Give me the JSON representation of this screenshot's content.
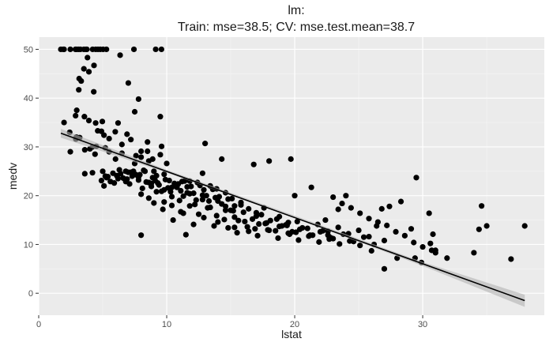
{
  "chart_data": {
    "type": "scatter",
    "title_line1": "lm:",
    "title_line2": "Train: mse=38.5; CV: mse.test.mean=38.7",
    "xlabel": "lstat",
    "ylabel": "medv",
    "xlim": [
      0,
      39.5
    ],
    "ylim": [
      -4.5,
      52.5
    ],
    "x_ticks": [
      0,
      10,
      20,
      30
    ],
    "y_ticks": [
      0,
      10,
      20,
      30,
      40,
      50
    ],
    "x_tick_labels": [
      "0",
      "10",
      "20",
      "30"
    ],
    "y_tick_labels": [
      "0",
      "10",
      "20",
      "30",
      "40",
      "50"
    ],
    "grid": true,
    "colors": {
      "panel": "#ebebeb",
      "grid_major": "#ffffff",
      "grid_minor": "#f5f5f5",
      "points": "#000000",
      "fit_line": "#000000",
      "confidence_band": "#b3b3b3"
    },
    "fit_line": {
      "x": [
        1.73,
        37.97
      ],
      "y": [
        32.8,
        -1.5
      ]
    },
    "confidence_band": {
      "x": [
        1.73,
        10,
        20,
        30,
        37.97
      ],
      "lower": [
        31.9,
        24.7,
        15.4,
        5.6,
        -2.8
      ],
      "upper": [
        33.7,
        25.3,
        15.9,
        6.4,
        -0.3
      ]
    },
    "series": [
      {
        "x": [
          1.73,
          1.92,
          1.98,
          2.47,
          2.87,
          2.96,
          3.11,
          3.26,
          3.53,
          3.7,
          3.76,
          4.21,
          4.45,
          4.63,
          4.81,
          5.03,
          5.29,
          6.36,
          7.44,
          9.14,
          9.59,
          1.98,
          2.88,
          3.13,
          3.16,
          3.32,
          3.53,
          3.81,
          2.42,
          4.3,
          4.32,
          3.92,
          2.97,
          2.94,
          3.92,
          4.45,
          2.47,
          3.57,
          4.61,
          4.97,
          5.1,
          5.2,
          5.98,
          6.5,
          7.2,
          7.0,
          7.5,
          7.8,
          8.0,
          8.5,
          9.5,
          4.0,
          4.5,
          5.0,
          5.5,
          6.0,
          6.5,
          7.0,
          7.5,
          8.0,
          8.5,
          9.0,
          9.5,
          10.0,
          4.2,
          5.2,
          6.2,
          7.2,
          8.2,
          9.2,
          10.2,
          11.2,
          6.8,
          7.8,
          8.8,
          9.8,
          10.8,
          11.8,
          12.8,
          4.9,
          5.4,
          5.9,
          6.4,
          6.9,
          7.4,
          7.9,
          8.4,
          8.9,
          9.4,
          9.9,
          10.4,
          10.9,
          11.4,
          11.9,
          12.4,
          12.9,
          13.4,
          13.9,
          5.1,
          5.6,
          6.1,
          6.6,
          7.1,
          7.6,
          8.1,
          8.6,
          9.1,
          9.6,
          10.1,
          10.6,
          11.1,
          11.6,
          12.1,
          12.6,
          13.1,
          13.6,
          14.1,
          14.6,
          15.1,
          5.3,
          5.8,
          6.3,
          6.8,
          7.3,
          7.8,
          8.3,
          8.8,
          9.3,
          9.8,
          10.3,
          10.8,
          11.3,
          11.8,
          12.3,
          12.8,
          13.3,
          13.8,
          14.3,
          14.8,
          15.3,
          15.8,
          8.0,
          8.6,
          9.2,
          9.8,
          10.4,
          11.0,
          11.6,
          12.2,
          12.8,
          13.4,
          14.0,
          14.6,
          15.2,
          15.8,
          16.4,
          17.0,
          17.6,
          9.0,
          9.7,
          10.4,
          11.1,
          11.8,
          12.5,
          13.2,
          13.9,
          14.6,
          15.3,
          16.0,
          16.7,
          17.4,
          18.1,
          18.8,
          19.5,
          10.5,
          11.3,
          12.1,
          12.9,
          13.7,
          14.5,
          15.3,
          16.1,
          16.9,
          17.7,
          18.5,
          19.3,
          20.1,
          14.0,
          14.8,
          15.6,
          16.4,
          17.2,
          18.0,
          18.8,
          19.6,
          20.4,
          21.2,
          22.0,
          22.8,
          15.5,
          16.3,
          17.1,
          17.9,
          18.7,
          19.5,
          20.3,
          21.1,
          21.9,
          22.7,
          23.5,
          24.3,
          25.1,
          17.0,
          17.8,
          18.6,
          19.4,
          20.2,
          21.0,
          21.8,
          22.6,
          23.4,
          24.2,
          25.0,
          25.8,
          19.0,
          19.8,
          20.6,
          21.4,
          22.2,
          23.0,
          23.8,
          24.6,
          25.4,
          26.2,
          27.0,
          23.0,
          23.7,
          24.4,
          25.1,
          25.8,
          26.5,
          27.2,
          27.9,
          28.6,
          29.3,
          30.0,
          30.7,
          3.6,
          4.2,
          3.2,
          2.9,
          3.6,
          4.4,
          4.9,
          5.5,
          6.2,
          6.9,
          8.9,
          9.6,
          7.6,
          8.6,
          11.5,
          13.0,
          14.3,
          15.0,
          16.8,
          18.0,
          19.7,
          20.0,
          21.3,
          22.4,
          23.4,
          26.4,
          26.8,
          27.4,
          28.3,
          29.1,
          29.4,
          29.9,
          30.6,
          31.0,
          31.9,
          34.0,
          34.4,
          34.6,
          35.0,
          36.9,
          37.97,
          8.0,
          22.6,
          24.0,
          26.0,
          27.0,
          28.0,
          29.5,
          30.5,
          30.8,
          31.0
        ],
        "y": [
          50,
          50,
          50,
          50,
          50,
          50,
          50,
          50,
          50,
          50,
          50,
          50,
          50,
          50,
          50,
          50,
          50,
          48.8,
          50,
          50,
          50,
          35.0,
          36.4,
          41.7,
          44.0,
          43.5,
          46.0,
          48.3,
          33.0,
          41.3,
          46.7,
          45.4,
          37.5,
          32.0,
          35.4,
          34.9,
          29.0,
          36.2,
          33.3,
          35.2,
          32.4,
          29.8,
          33.1,
          30.5,
          31.5,
          43.1,
          37.2,
          39.8,
          29.1,
          31.0,
          36.2,
          29.6,
          30.1,
          25.0,
          29.0,
          27.5,
          28.7,
          24.8,
          26.6,
          27.9,
          29.1,
          25.0,
          28.4,
          26.6,
          24.7,
          24.0,
          23.5,
          24.8,
          25.2,
          24.1,
          23.1,
          22.9,
          25.0,
          23.8,
          22.5,
          24.4,
          22.2,
          23.0,
          24.6,
          23.1,
          23.9,
          22.6,
          24.5,
          23.4,
          25.0,
          24.3,
          22.8,
          23.7,
          22.2,
          23.3,
          21.7,
          22.4,
          23.0,
          21.9,
          22.7,
          21.2,
          22.0,
          21.4,
          22.0,
          22.9,
          24.1,
          23.6,
          22.4,
          24.3,
          21.5,
          22.7,
          23.1,
          20.9,
          21.6,
          22.5,
          21.0,
          21.8,
          20.5,
          22.1,
          20.0,
          21.3,
          19.8,
          20.6,
          19.4,
          23.7,
          24.6,
          25.3,
          22.9,
          24.0,
          23.2,
          25.0,
          21.9,
          22.6,
          21.2,
          20.8,
          21.7,
          19.9,
          20.4,
          19.1,
          20.1,
          18.9,
          19.6,
          18.3,
          19.3,
          17.9,
          18.6,
          20.3,
          19.5,
          20.8,
          18.7,
          19.8,
          19.0,
          20.6,
          18.2,
          19.2,
          17.6,
          18.9,
          17.8,
          16.9,
          18.1,
          17.3,
          16.5,
          17.5,
          18.5,
          17.2,
          18.0,
          16.7,
          17.9,
          16.2,
          17.5,
          15.9,
          17.0,
          15.6,
          16.6,
          15.2,
          16.1,
          14.9,
          15.7,
          14.5,
          15.0,
          16.4,
          14.1,
          15.5,
          13.8,
          15.1,
          13.5,
          14.7,
          13.2,
          14.3,
          12.8,
          14.0,
          12.5,
          14.6,
          13.4,
          14.9,
          12.7,
          14.2,
          12.9,
          13.7,
          12.1,
          13.1,
          11.9,
          12.6,
          11.4,
          12.4,
          13.6,
          11.8,
          13.0,
          11.3,
          12.3,
          10.9,
          11.7,
          10.5,
          11.1,
          10.1,
          10.7,
          9.8,
          15.8,
          14.4,
          15.2,
          13.9,
          14.7,
          13.3,
          14.1,
          12.7,
          13.5,
          12.2,
          12.9,
          11.6,
          13.8,
          12.6,
          13.4,
          11.9,
          12.8,
          11.2,
          12.1,
          10.6,
          11.5,
          10.0,
          10.8,
          19.7,
          18.4,
          17.5,
          16.4,
          15.3,
          14.6,
          13.9,
          12.6,
          11.8,
          10.4,
          9.5,
          8.8,
          24.5,
          30.0,
          31.9,
          31.6,
          29.4,
          28.5,
          33.2,
          31.7,
          34.9,
          32.6,
          27.5,
          30.1,
          28.2,
          27.1,
          12.0,
          30.7,
          27.5,
          17.0,
          26.4,
          27.1,
          27.5,
          20.0,
          21.7,
          15.0,
          17.2,
          13.8,
          17.3,
          17.8,
          18.8,
          13.2,
          7.2,
          6.3,
          10.2,
          8.8,
          7.2,
          8.3,
          13.1,
          17.9,
          13.8,
          7.0,
          13.8,
          11.9,
          11.9,
          20.0,
          8.7,
          5.0,
          7.2,
          23.7,
          16.4,
          12.1,
          8.3
        ]
      }
    ]
  }
}
